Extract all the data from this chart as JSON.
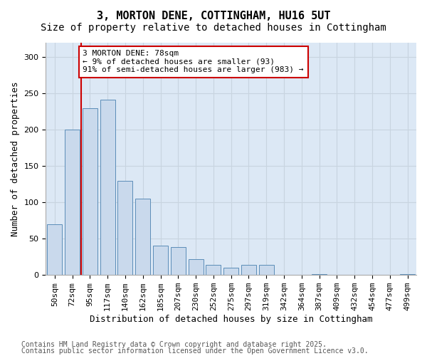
{
  "title_line1": "3, MORTON DENE, COTTINGHAM, HU16 5UT",
  "title_line2": "Size of property relative to detached houses in Cottingham",
  "xlabel": "Distribution of detached houses by size in Cottingham",
  "ylabel": "Number of detached properties",
  "categories": [
    "50sqm",
    "72sqm",
    "95sqm",
    "117sqm",
    "140sqm",
    "162sqm",
    "185sqm",
    "207sqm",
    "230sqm",
    "252sqm",
    "275sqm",
    "297sqm",
    "319sqm",
    "342sqm",
    "364sqm",
    "387sqm",
    "409sqm",
    "432sqm",
    "454sqm",
    "477sqm",
    "499sqm"
  ],
  "values": [
    70,
    200,
    230,
    242,
    130,
    105,
    40,
    38,
    22,
    14,
    10,
    14,
    14,
    0,
    0,
    1,
    0,
    0,
    0,
    0,
    1
  ],
  "bar_color": "#c9d9ec",
  "bar_edge_color": "#5b8db8",
  "vline_x": 1.5,
  "vline_color": "#cc0000",
  "annotation_text": "3 MORTON DENE: 78sqm\n← 9% of detached houses are smaller (93)\n91% of semi-detached houses are larger (983) →",
  "annotation_box_color": "#ffffff",
  "annotation_box_edge_color": "#cc0000",
  "ylim": [
    0,
    320
  ],
  "yticks": [
    0,
    50,
    100,
    150,
    200,
    250,
    300
  ],
  "grid_color": "#c8d4e0",
  "background_color": "#dce8f5",
  "footer_line1": "Contains HM Land Registry data © Crown copyright and database right 2025.",
  "footer_line2": "Contains public sector information licensed under the Open Government Licence v3.0.",
  "title_fontsize": 11,
  "subtitle_fontsize": 10,
  "axis_label_fontsize": 9,
  "tick_fontsize": 8,
  "annotation_fontsize": 8,
  "footer_fontsize": 7
}
